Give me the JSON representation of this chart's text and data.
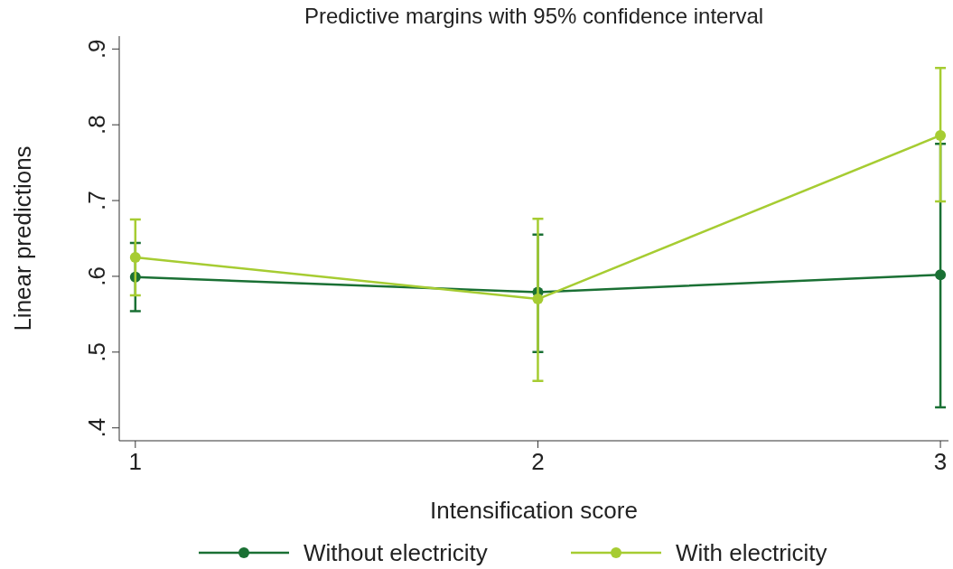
{
  "chart_data": {
    "type": "line",
    "title": "Predictive margins with 95% confidence interval",
    "xlabel": "Intensification score",
    "ylabel": "Linear predictions",
    "x": [
      1,
      2,
      3
    ],
    "xlim": [
      0.96,
      3.02
    ],
    "xticks": [
      1,
      2,
      3
    ],
    "ylim": [
      0.383,
      0.917
    ],
    "yticks": [
      {
        "value": 0.4,
        "label": ".4"
      },
      {
        "value": 0.5,
        "label": ".5"
      },
      {
        "value": 0.6,
        "label": ".6"
      },
      {
        "value": 0.7,
        "label": ".7"
      },
      {
        "value": 0.8,
        "label": ".8"
      },
      {
        "value": 0.9,
        "label": ".9"
      }
    ],
    "series": [
      {
        "name": "Without electricity",
        "color": "#1a7034",
        "values": [
          0.599,
          0.579,
          0.602
        ],
        "errors": [
          [
            0.554,
            0.644
          ],
          [
            0.5,
            0.655
          ],
          [
            0.427,
            0.775
          ]
        ]
      },
      {
        "name": "With electricity",
        "color": "#a6cc32",
        "values": [
          0.625,
          0.57,
          0.786
        ],
        "errors": [
          [
            0.575,
            0.675
          ],
          [
            0.462,
            0.676
          ],
          [
            0.699,
            0.875
          ]
        ]
      }
    ],
    "marker": "circle",
    "line_style": "solid",
    "grid": false,
    "legend": "bottom"
  }
}
